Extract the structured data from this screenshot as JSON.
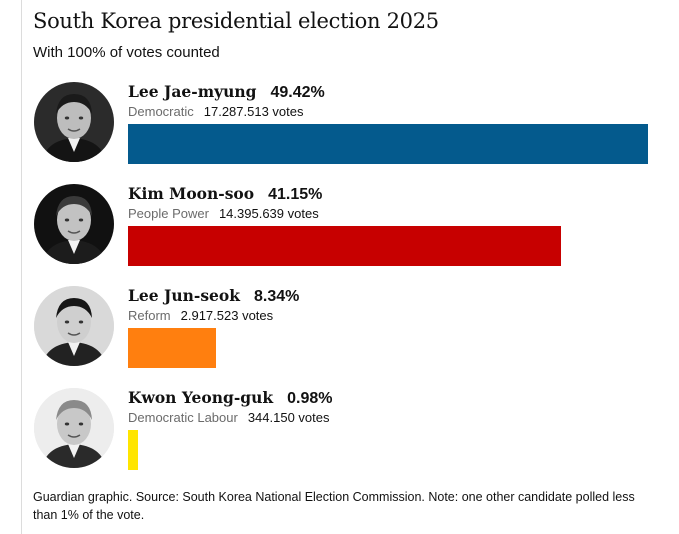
{
  "title": "South Korea presidential election 2025",
  "subtitle": "With 100% of votes counted",
  "footnote": "Guardian graphic. Source: South Korea National Election Commission. Note: one other candidate polled less than 1% of the vote.",
  "chart_data": {
    "type": "bar",
    "orientation": "horizontal",
    "title": "South Korea presidential election 2025",
    "subtitle": "With 100% of votes counted",
    "categories": [
      "Lee Jae-myung",
      "Kim Moon-soo",
      "Lee Jun-seok",
      "Kwon Yeong-guk"
    ],
    "candidates": [
      {
        "name": "Lee Jae-myung",
        "percent_label": "49.42%",
        "percent": 49.42,
        "party": "Democratic",
        "votes_label": "17.287.513 votes",
        "votes": 17287513,
        "color": "#045a8d",
        "icon": "candidate-portrait"
      },
      {
        "name": "Kim Moon-soo",
        "percent_label": "41.15%",
        "percent": 41.15,
        "party": "People Power",
        "votes_label": "14.395.639 votes",
        "votes": 14395639,
        "color": "#c70000",
        "icon": "candidate-portrait"
      },
      {
        "name": "Lee Jun-seok",
        "percent_label": "8.34%",
        "percent": 8.34,
        "party": "Reform",
        "votes_label": "2.917.523 votes",
        "votes": 2917523,
        "color": "#ff7f0f",
        "icon": "candidate-portrait"
      },
      {
        "name": "Kwon Yeong-guk",
        "percent_label": "0.98%",
        "percent": 0.98,
        "party": "Democratic Labour",
        "votes_label": "344.150 votes",
        "votes": 344150,
        "color": "#ffe500",
        "icon": "candidate-portrait"
      }
    ],
    "source": "South Korea National Election Commission"
  }
}
